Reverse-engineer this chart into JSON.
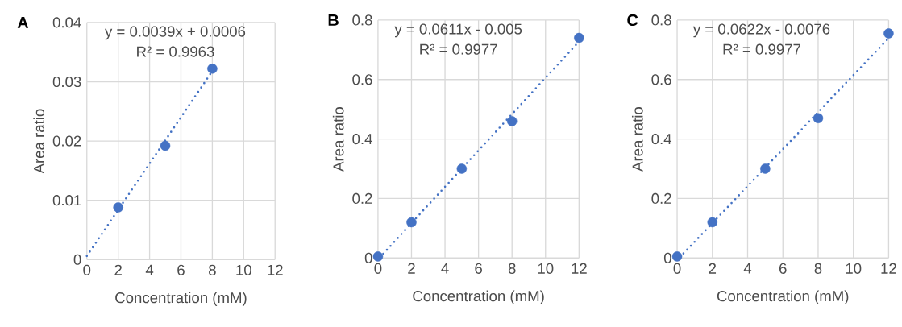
{
  "chart_data": [
    {
      "type": "scatter",
      "title": "A",
      "xlabel": "Concentration (mM)",
      "ylabel": "Area ratio",
      "annotations": [
        "y = 0.0039x + 0.0006",
        "R² = 0.9963"
      ],
      "xlim": [
        0,
        12
      ],
      "ylim": [
        0,
        0.04
      ],
      "xticks": [
        0,
        2,
        4,
        6,
        8,
        10,
        12
      ],
      "yticks": [
        0,
        0.01,
        0.02,
        0.03,
        0.04
      ],
      "grid": true,
      "marker": "circle",
      "series": [
        {
          "color": "#4472c4",
          "x": [
            2,
            5,
            8
          ],
          "values": [
            0.0088,
            0.0192,
            0.0322
          ]
        },
        {
          "type": "line",
          "line_style": "dotted",
          "marker": "none",
          "color": "#4472c4",
          "x": [
            0,
            8
          ],
          "values": [
            0.0006,
            0.0318
          ]
        }
      ]
    },
    {
      "type": "scatter",
      "title": "B",
      "xlabel": "Concentration (mM)",
      "ylabel": "Area ratio",
      "annotations": [
        "y = 0.0611x - 0.005",
        "R² = 0.9977"
      ],
      "xlim": [
        0,
        12
      ],
      "ylim": [
        0,
        0.8
      ],
      "xticks": [
        0,
        2,
        4,
        6,
        8,
        10,
        12
      ],
      "yticks": [
        0,
        0.2,
        0.4,
        0.6,
        0.8
      ],
      "grid": true,
      "marker": "circle",
      "series": [
        {
          "color": "#4472c4",
          "x": [
            0,
            2,
            5,
            8,
            12
          ],
          "values": [
            0.005,
            0.12,
            0.3,
            0.46,
            0.74
          ]
        },
        {
          "type": "line",
          "line_style": "dotted",
          "marker": "none",
          "color": "#4472c4",
          "x": [
            0.1,
            12
          ],
          "values": [
            0.001,
            0.728
          ]
        }
      ]
    },
    {
      "type": "scatter",
      "title": "C",
      "xlabel": "Concentration (mM)",
      "ylabel": "Area ratio",
      "annotations": [
        "y = 0.0622x - 0.0076",
        "R² = 0.9977"
      ],
      "xlim": [
        0,
        12
      ],
      "ylim": [
        0,
        0.8
      ],
      "xticks": [
        0,
        2,
        4,
        6,
        8,
        10,
        12
      ],
      "yticks": [
        0,
        0.2,
        0.4,
        0.6,
        0.8
      ],
      "grid": true,
      "marker": "circle",
      "series": [
        {
          "color": "#4472c4",
          "x": [
            0,
            2,
            5,
            8,
            12
          ],
          "values": [
            0.005,
            0.12,
            0.3,
            0.47,
            0.755
          ]
        },
        {
          "type": "line",
          "line_style": "dotted",
          "marker": "none",
          "color": "#4472c4",
          "x": [
            0.15,
            12
          ],
          "values": [
            0.002,
            0.739
          ]
        }
      ]
    }
  ]
}
